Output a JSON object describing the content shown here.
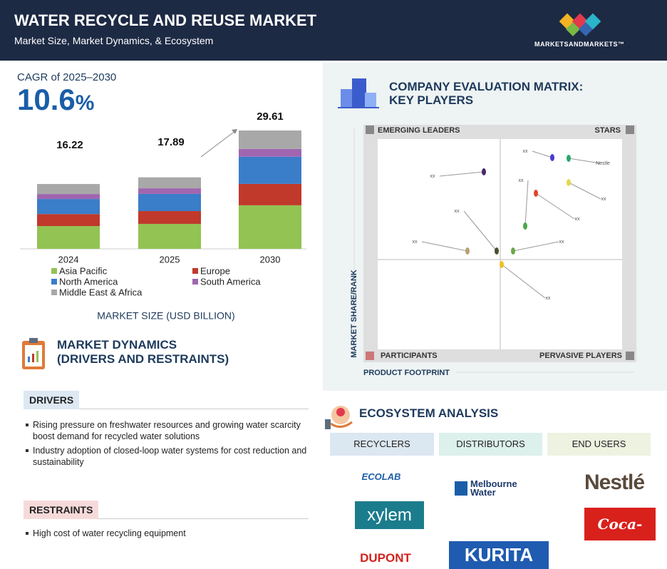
{
  "header": {
    "title": "WATER RECYCLE AND REUSE MARKET",
    "subtitle": "Market Size, Market Dynamics, & Ecosystem",
    "brand": "MARKETSANDMARKETS™"
  },
  "cagr": {
    "label": "CAGR of 2025–2030",
    "value": "10.6",
    "unit": "%"
  },
  "chart_data": {
    "type": "bar",
    "stacked": true,
    "categories": [
      "2024",
      "2025",
      "2030"
    ],
    "totals": [
      16.22,
      17.89,
      29.61
    ],
    "series": [
      {
        "name": "Asia Pacific",
        "color": "#92c353",
        "values": [
          5.7,
          6.25,
          10.9
        ]
      },
      {
        "name": "Europe",
        "color": "#c0392b",
        "values": [
          3.0,
          3.2,
          5.35
        ]
      },
      {
        "name": "North America",
        "color": "#3a7dc9",
        "values": [
          3.77,
          4.3,
          6.8
        ]
      },
      {
        "name": "South America",
        "color": "#a066b0",
        "values": [
          1.25,
          1.4,
          1.96
        ]
      },
      {
        "name": "Middle East & Africa",
        "color": "#a8a8a8",
        "values": [
          2.5,
          2.74,
          4.6
        ]
      }
    ],
    "xlabel": "MARKET SIZE (USD BILLION)"
  },
  "dynamics": {
    "title": [
      "MARKET DYNAMICS",
      "(DRIVERS AND RESTRAINTS)"
    ],
    "drivers": {
      "heading": "DRIVERS",
      "items": [
        "Rising pressure on freshwater resources and growing water scarcity boost demand for recycled water solutions",
        "Industry adoption of closed-loop water systems for cost reduction and sustainability"
      ]
    },
    "restraints": {
      "heading": "RESTRAINTS",
      "items": [
        "High cost of water recycling equipment"
      ]
    }
  },
  "matrix": {
    "title": [
      "COMPANY EVALUATION MATRIX:",
      "KEY PLAYERS"
    ],
    "quadrants": {
      "top_left": "EMERGING LEADERS",
      "top_right": "STARS",
      "bottom_left": "PARTICIPANTS",
      "bottom_right": "PERVASIVE PLAYERS"
    },
    "y_label": "MARKET SHARE/RANK",
    "x_label": "PRODUCT FOOTPRINT",
    "companies": [
      "xx",
      "xx",
      "Nestle",
      "xx",
      "xx",
      "xx",
      "xx",
      "xx",
      "xx",
      "xx"
    ]
  },
  "ecosystem": {
    "title": "ECOSYSTEM ANALYSIS",
    "columns": [
      {
        "heading": "RECYCLERS",
        "companies": [
          "ECOLAB",
          "xylem",
          "DUPONT"
        ]
      },
      {
        "heading": "DISTRIBUTORS",
        "companies": [
          "Melbourne Water",
          "KURITA"
        ]
      },
      {
        "heading": "END USERS",
        "companies": [
          "Nestlé",
          "Coca-Cola"
        ]
      }
    ]
  }
}
